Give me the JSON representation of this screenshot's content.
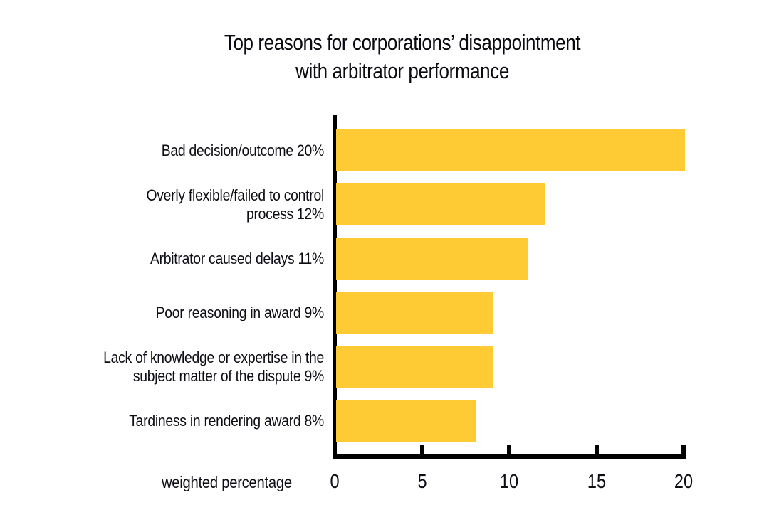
{
  "title": {
    "line1": "Top reasons for corporations’ disappointment",
    "line2": "with arbitrator performance"
  },
  "chart_data": {
    "type": "bar",
    "orientation": "horizontal",
    "title": "Top reasons for corporations’ disappointment with arbitrator performance",
    "categories": [
      "Bad decision/outcome 20%",
      "Overly flexible/failed to control process 12%",
      "Arbitrator caused delays 11%",
      "Poor reasoning in award 9%",
      "Lack of knowledge or expertise in the subject matter of the dispute 9%",
      "Tardiness in rendering award 8%"
    ],
    "values": [
      20,
      12,
      11,
      9,
      9,
      8
    ],
    "xlabel": "weighted percentage",
    "ylabel": "",
    "xticks": [
      0,
      5,
      10,
      15,
      20
    ],
    "xlim": [
      0,
      20
    ],
    "grid": false,
    "legend": false,
    "bar_color": "#fecb35",
    "axis_color": "#000000",
    "text_color": "#0d0d15"
  },
  "display": {
    "label_lines": [
      [
        "Bad decision/outcome 20%"
      ],
      [
        "Overly flexible/failed to control",
        "process 12%"
      ],
      [
        "Arbitrator caused delays 11%"
      ],
      [
        "Poor reasoning in award 9%"
      ],
      [
        "Lack of knowledge or expertise in the",
        "subject matter of the dispute 9%"
      ],
      [
        "Tardiness in rendering award 8%"
      ]
    ]
  }
}
